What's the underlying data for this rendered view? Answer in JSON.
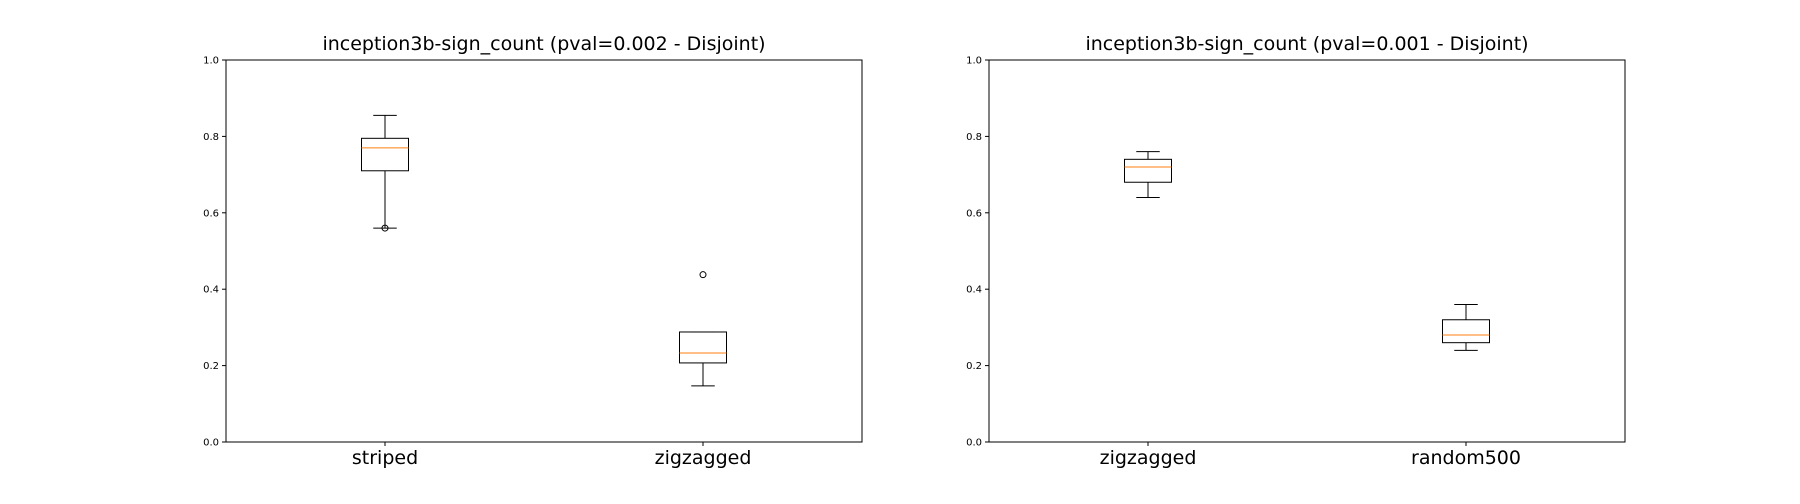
{
  "chart_data": [
    {
      "type": "boxplot",
      "title": "inception3b-sign_count (pval=0.002 - Disjoint)",
      "xlabel": "",
      "ylabel": "",
      "ylim": [
        0.0,
        1.0
      ],
      "yticks": [
        0.0,
        0.2,
        0.4,
        0.6,
        0.8,
        1.0
      ],
      "ytick_labels": [
        "0.0",
        "0.2",
        "0.4",
        "0.6",
        "0.8",
        "1.0"
      ],
      "grid": false,
      "box_color": "#000000",
      "median_color": "#ff7f0e",
      "categories": [
        "striped",
        "zigzagged"
      ],
      "boxes": [
        {
          "whisker_low": 0.56,
          "q1": 0.71,
          "median": 0.77,
          "q3": 0.795,
          "whisker_high": 0.855,
          "outliers": [
            0.56
          ]
        },
        {
          "whisker_low": 0.147,
          "q1": 0.207,
          "median": 0.233,
          "q3": 0.288,
          "whisker_high": 0.288,
          "outliers": [
            0.438
          ]
        }
      ]
    },
    {
      "type": "boxplot",
      "title": "inception3b-sign_count (pval=0.001 - Disjoint)",
      "xlabel": "",
      "ylabel": "",
      "ylim": [
        0.0,
        1.0
      ],
      "yticks": [
        0.0,
        0.2,
        0.4,
        0.6,
        0.8,
        1.0
      ],
      "ytick_labels": [
        "0.0",
        "0.2",
        "0.4",
        "0.6",
        "0.8",
        "1.0"
      ],
      "grid": false,
      "box_color": "#000000",
      "median_color": "#ff7f0e",
      "categories": [
        "zigzagged",
        "random500"
      ],
      "boxes": [
        {
          "whisker_low": 0.64,
          "q1": 0.68,
          "median": 0.72,
          "q3": 0.74,
          "whisker_high": 0.76,
          "outliers": []
        },
        {
          "whisker_low": 0.24,
          "q1": 0.26,
          "median": 0.28,
          "q3": 0.32,
          "whisker_high": 0.36,
          "outliers": []
        }
      ]
    }
  ]
}
